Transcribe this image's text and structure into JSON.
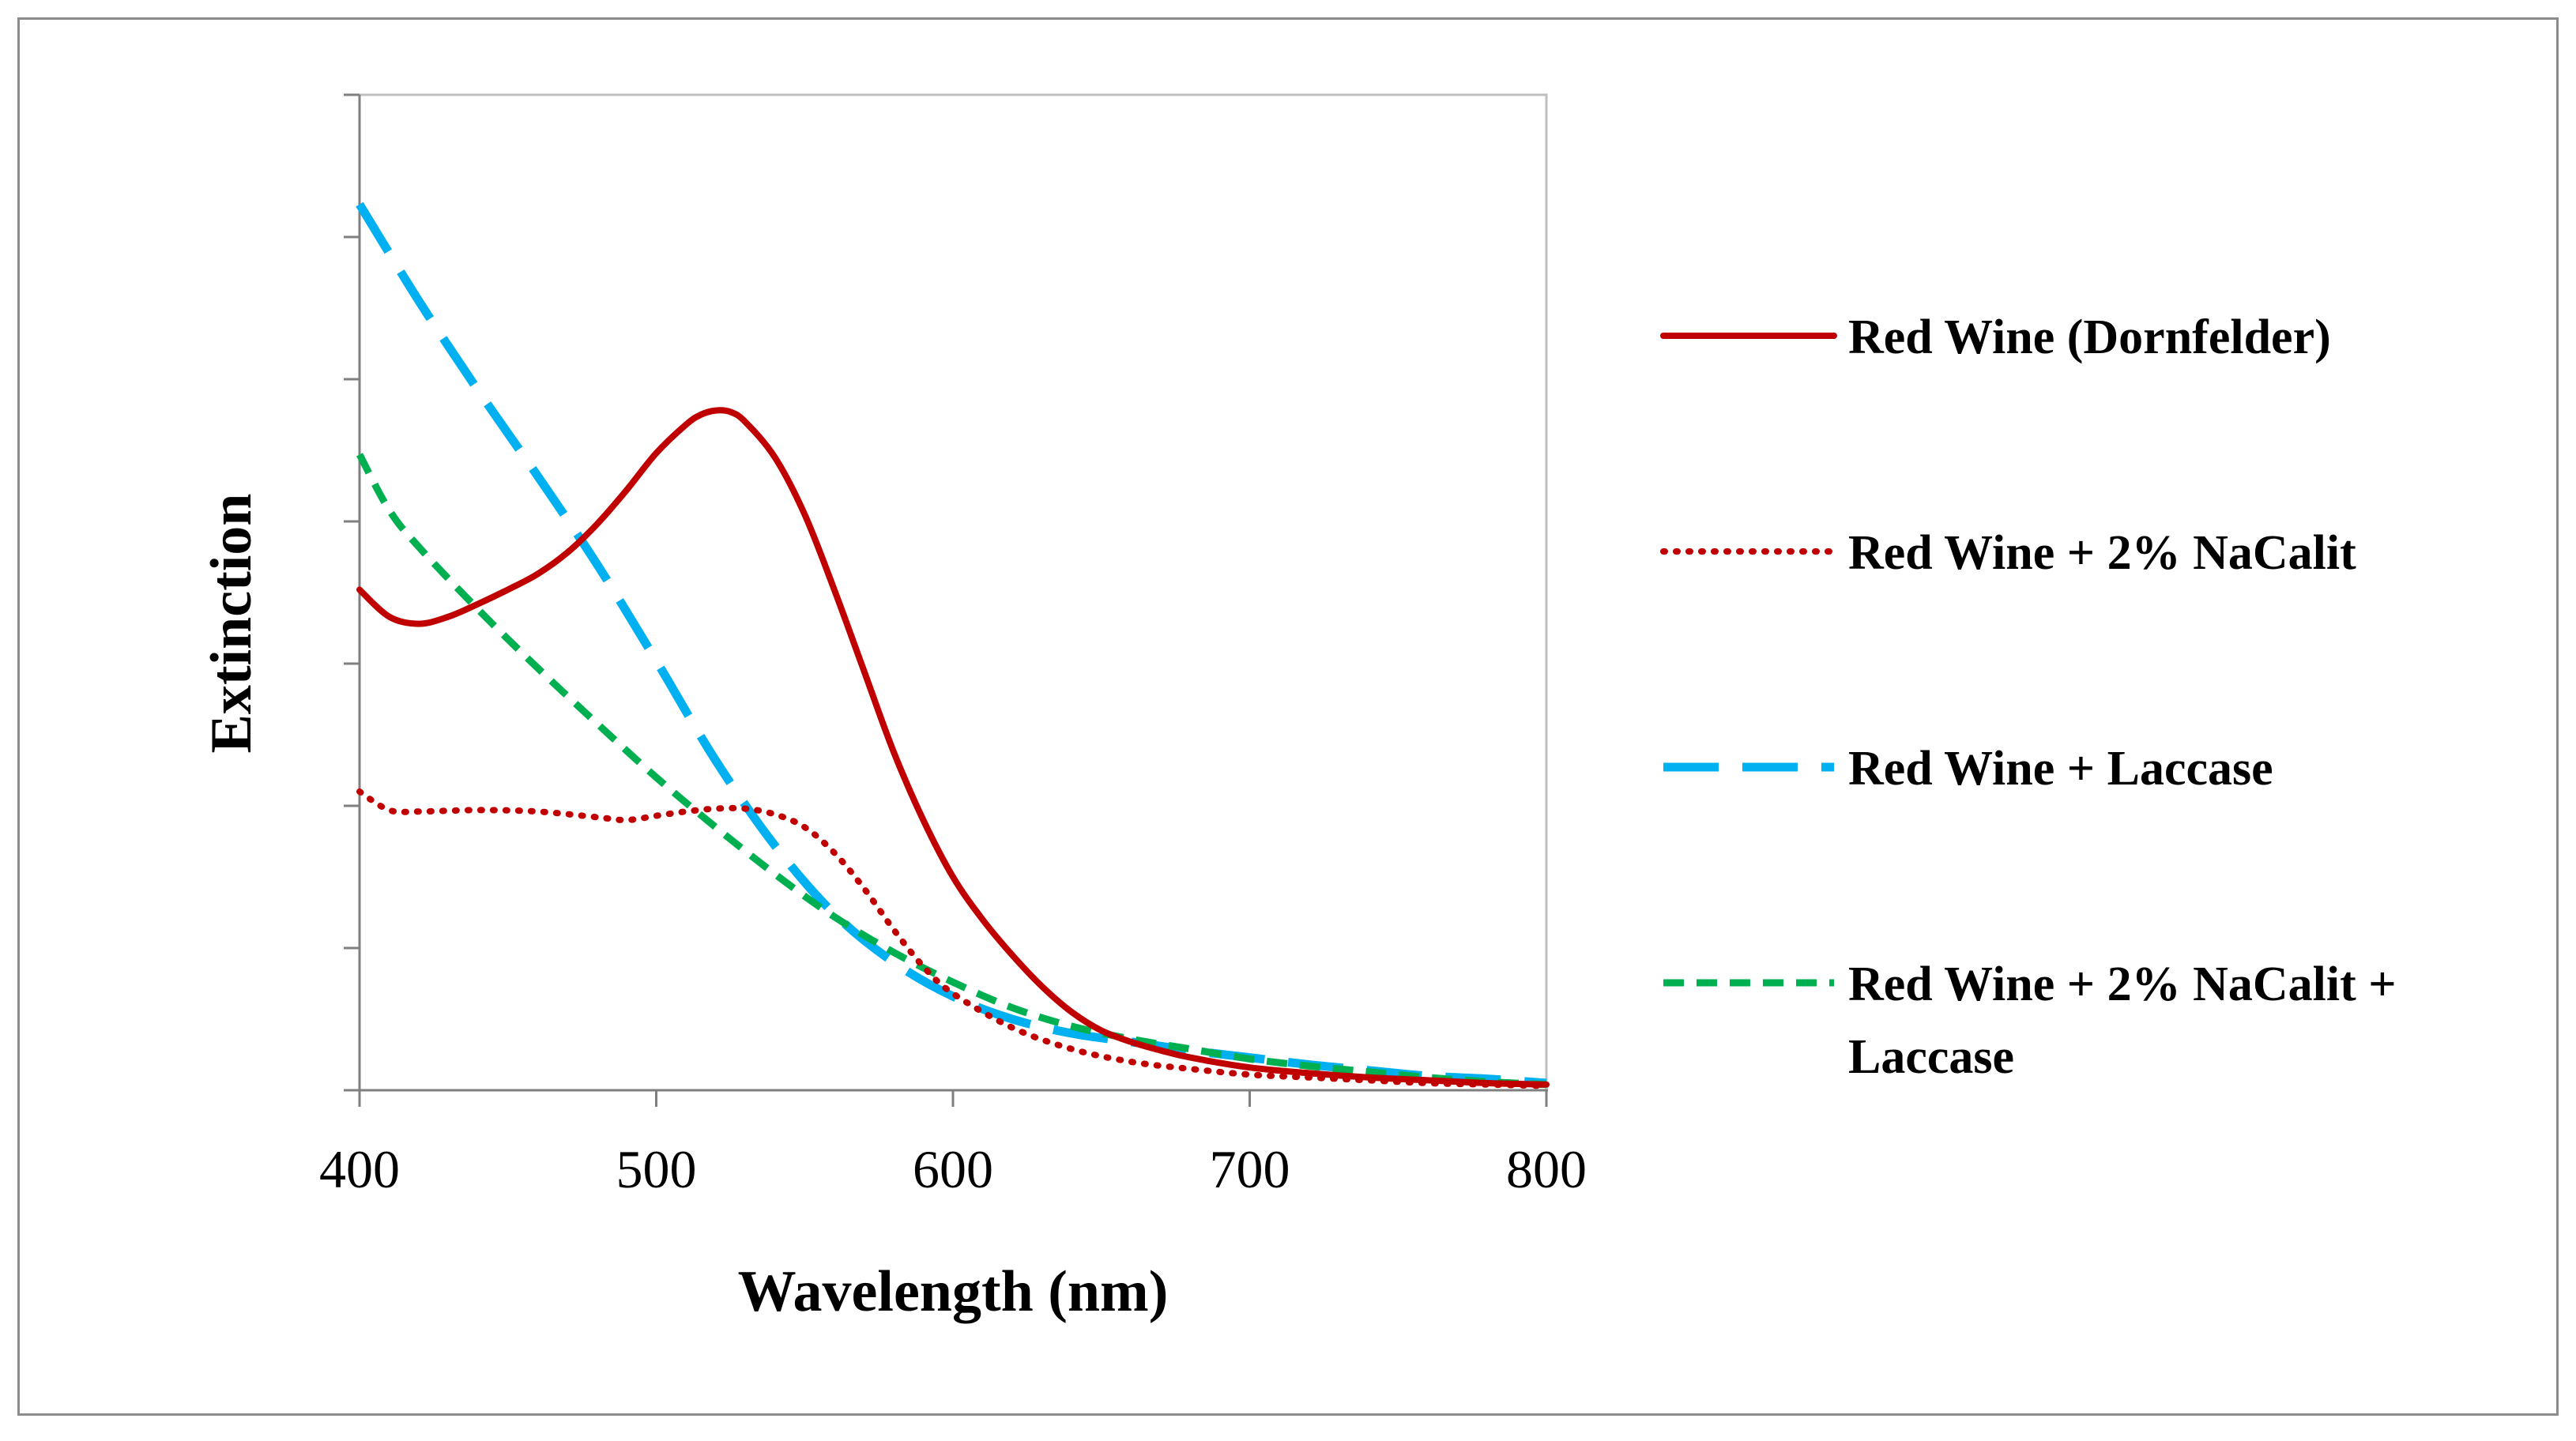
{
  "chart_data": {
    "type": "line",
    "xlabel": "Wavelength (nm)",
    "ylabel": "Extinction",
    "xlim": [
      400,
      800
    ],
    "xticks": [
      400,
      500,
      600,
      700,
      800
    ],
    "xtick_labels": [
      "400",
      "500",
      "600",
      "700",
      "800"
    ],
    "ylim": [
      0,
      7
    ],
    "yticks": [
      0,
      1,
      2,
      3,
      4,
      5,
      6,
      7
    ],
    "ytick_labels_shown": false,
    "grid": false,
    "legend": "right",
    "series": [
      {
        "name": "Red Wine (Dornfelder)",
        "color": "#C00000",
        "dash": "solid",
        "x": [
          400,
          410,
          420,
          430,
          440,
          450,
          460,
          470,
          480,
          490,
          500,
          510,
          515,
          520,
          525,
          530,
          540,
          550,
          560,
          570,
          580,
          590,
          600,
          610,
          620,
          630,
          640,
          650,
          660,
          670,
          680,
          700,
          720,
          740,
          760,
          780,
          800
        ],
        "y": [
          3.52,
          3.33,
          3.28,
          3.33,
          3.42,
          3.52,
          3.63,
          3.78,
          3.98,
          4.22,
          4.48,
          4.68,
          4.75,
          4.78,
          4.77,
          4.7,
          4.45,
          4.05,
          3.52,
          2.95,
          2.38,
          1.9,
          1.5,
          1.2,
          0.95,
          0.73,
          0.55,
          0.42,
          0.34,
          0.28,
          0.23,
          0.16,
          0.12,
          0.09,
          0.07,
          0.05,
          0.04
        ]
      },
      {
        "name": "Red Wine + 2% NaCalit",
        "color": "#C00000",
        "dash": "dotted",
        "x": [
          400,
          410,
          420,
          440,
          460,
          480,
          490,
          500,
          510,
          520,
          530,
          540,
          550,
          560,
          570,
          580,
          590,
          600,
          620,
          640,
          660,
          680,
          700,
          720,
          740,
          760,
          780,
          800
        ],
        "y": [
          2.1,
          1.97,
          1.96,
          1.97,
          1.96,
          1.92,
          1.9,
          1.93,
          1.96,
          1.98,
          1.98,
          1.94,
          1.85,
          1.67,
          1.42,
          1.13,
          0.87,
          0.68,
          0.44,
          0.29,
          0.2,
          0.15,
          0.11,
          0.09,
          0.07,
          0.05,
          0.04,
          0.03
        ]
      },
      {
        "name": "Red Wine + Laccase",
        "color": "#00B0F0",
        "dash": "long-dash",
        "x": [
          400,
          420,
          440,
          460,
          480,
          500,
          520,
          540,
          560,
          580,
          600,
          620,
          640,
          660,
          680,
          700,
          720,
          740,
          760,
          780,
          800
        ],
        "y": [
          6.23,
          5.55,
          4.92,
          4.32,
          3.7,
          3.02,
          2.32,
          1.72,
          1.24,
          0.9,
          0.66,
          0.5,
          0.4,
          0.34,
          0.28,
          0.23,
          0.18,
          0.14,
          0.1,
          0.08,
          0.05
        ]
      },
      {
        "name": "Red Wine + 2% NaCalit + Laccase",
        "color": "#00B050",
        "dash": "dashed",
        "x": [
          400,
          410,
          420,
          440,
          460,
          480,
          500,
          520,
          540,
          560,
          580,
          600,
          620,
          640,
          660,
          680,
          700,
          720,
          740,
          760,
          780,
          800
        ],
        "y": [
          4.47,
          4.08,
          3.82,
          3.38,
          2.97,
          2.58,
          2.2,
          1.85,
          1.52,
          1.22,
          0.97,
          0.76,
          0.58,
          0.45,
          0.36,
          0.29,
          0.22,
          0.17,
          0.13,
          0.09,
          0.06,
          0.04
        ]
      }
    ]
  }
}
